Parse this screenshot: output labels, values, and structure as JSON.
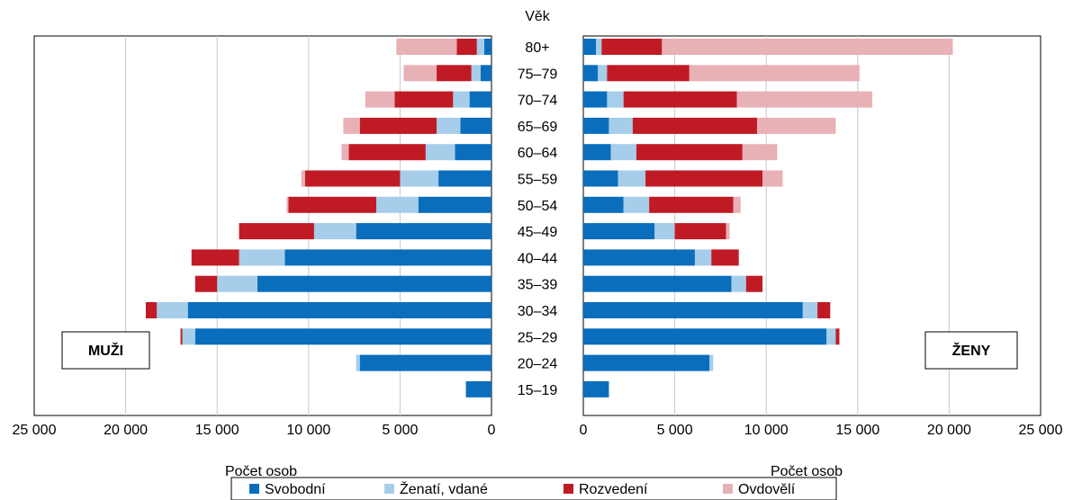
{
  "chart_data": {
    "type": "bar",
    "subtype": "population-pyramid-stacked-horizontal",
    "age_header": "Věk",
    "categories": [
      "80+",
      "75–79",
      "70–74",
      "65–69",
      "60–64",
      "55–59",
      "50–54",
      "45–49",
      "40–44",
      "35–39",
      "30–34",
      "25–29",
      "20–24",
      "15–19"
    ],
    "xlabel": "Počet osob",
    "xlim": [
      0,
      25000
    ],
    "ticks": [
      0,
      5000,
      10000,
      15000,
      20000,
      25000
    ],
    "tick_labels": [
      "0",
      "5 000",
      "10 000",
      "15 000",
      "20 000",
      "25 000"
    ],
    "grid": true,
    "legend_position": "bottom",
    "panels": {
      "men": {
        "label": "MUŽI",
        "direction": "left",
        "series": [
          {
            "name": "Svobodní",
            "color": "#0a6ebd",
            "values": [
              400,
              600,
              1200,
              1700,
              2000,
              2900,
              4000,
              7400,
              11300,
              12800,
              16600,
              16200,
              7200,
              1400
            ]
          },
          {
            "name": "Ženatí, vdané",
            "color": "#a6cdea",
            "values": [
              400,
              500,
              900,
              1300,
              1600,
              2100,
              2300,
              2300,
              2500,
              2200,
              1700,
              700,
              200,
              0
            ]
          },
          {
            "name": "Rozvedení",
            "color": "#c01b25",
            "values": [
              1100,
              1900,
              3200,
              4200,
              4200,
              5200,
              4800,
              4100,
              2600,
              1200,
              600,
              100,
              0,
              0
            ]
          },
          {
            "name": "Ovdovělí",
            "color": "#e8b1b6",
            "values": [
              3300,
              1800,
              1600,
              900,
              400,
              200,
              100,
              0,
              0,
              0,
              0,
              0,
              0,
              0
            ]
          }
        ]
      },
      "women": {
        "label": "ŽENY",
        "direction": "right",
        "series": [
          {
            "name": "Svobodní",
            "color": "#0a6ebd",
            "values": [
              700,
              800,
              1300,
              1400,
              1500,
              1900,
              2200,
              3900,
              6100,
              8100,
              12000,
              13300,
              6900,
              1400
            ]
          },
          {
            "name": "Ženatí, vdané",
            "color": "#a6cdea",
            "values": [
              300,
              500,
              900,
              1300,
              1400,
              1500,
              1400,
              1100,
              900,
              800,
              800,
              500,
              200,
              0
            ]
          },
          {
            "name": "Rozvedení",
            "color": "#c01b25",
            "values": [
              3300,
              4500,
              6200,
              6800,
              5800,
              6400,
              4600,
              2800,
              1500,
              900,
              700,
              200,
              0,
              0
            ]
          },
          {
            "name": "Ovdovělí",
            "color": "#e8b1b6",
            "values": [
              15900,
              9300,
              7400,
              4300,
              1900,
              1100,
              400,
              200,
              0,
              0,
              0,
              0,
              0,
              0
            ]
          }
        ]
      }
    },
    "legend": [
      "Svobodní",
      "Ženatí, vdané",
      "Rozvedení",
      "Ovdovělí"
    ]
  }
}
